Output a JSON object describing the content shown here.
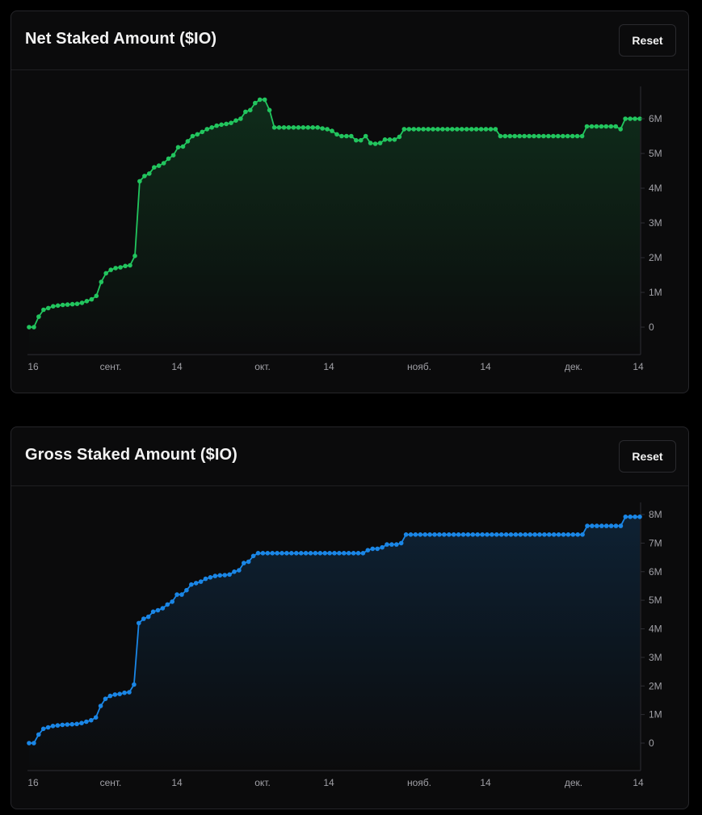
{
  "net": {
    "title": "Net Staked Amount ($IO)",
    "reset_label": "Reset"
  },
  "gross": {
    "title": "Gross Staked Amount ($IO)",
    "reset_label": "Reset"
  },
  "chart_data": [
    {
      "type": "area",
      "title": "Net Staked Amount ($IO)",
      "color": "#22c55e",
      "x_ticks": [
        "16",
        "сент.",
        "14",
        "окт.",
        "14",
        "нояб.",
        "14",
        "дек.",
        "14"
      ],
      "y_ticks": [
        "0",
        "1M",
        "2M",
        "3M",
        "4M",
        "5M",
        "6M"
      ],
      "ylim": [
        0,
        6000000
      ],
      "grid": false,
      "series": [
        {
          "values": [
            0,
            0,
            300000,
            500000,
            550000,
            600000,
            620000,
            640000,
            650000,
            660000,
            670000,
            700000,
            750000,
            800000,
            900000,
            1300000,
            1550000,
            1650000,
            1700000,
            1720000,
            1760000,
            1780000,
            2050000,
            4200000,
            4350000,
            4420000,
            4600000,
            4650000,
            4720000,
            4850000,
            4950000,
            5180000,
            5200000,
            5350000,
            5500000,
            5550000,
            5620000,
            5700000,
            5750000,
            5800000,
            5830000,
            5850000,
            5880000,
            5950000,
            6000000,
            6200000,
            6250000,
            6450000,
            6550000,
            6550000,
            6250000,
            5750000,
            5750000,
            5750000,
            5750000,
            5750000,
            5750000,
            5750000,
            5750000,
            5750000,
            5750000,
            5720000,
            5700000,
            5650000,
            5550000,
            5500000,
            5500000,
            5500000,
            5380000,
            5380000,
            5500000,
            5300000,
            5280000,
            5300000,
            5400000,
            5400000,
            5400000,
            5480000,
            5700000,
            5700000,
            5700000,
            5700000,
            5700000,
            5700000,
            5700000,
            5700000,
            5700000,
            5700000,
            5700000,
            5700000,
            5700000,
            5700000,
            5700000,
            5700000,
            5700000,
            5700000,
            5700000,
            5700000,
            5500000,
            5500000,
            5500000,
            5500000,
            5500000,
            5500000,
            5500000,
            5500000,
            5500000,
            5500000,
            5500000,
            5500000,
            5500000,
            5500000,
            5500000,
            5500000,
            5500000,
            5500000,
            5780000,
            5780000,
            5780000,
            5780000,
            5780000,
            5780000,
            5780000,
            5700000,
            6000000,
            6000000,
            6000000,
            6000000
          ]
        }
      ]
    },
    {
      "type": "area",
      "title": "Gross Staked Amount ($IO)",
      "color": "#1a86e6",
      "x_ticks": [
        "16",
        "сент.",
        "14",
        "окт.",
        "14",
        "нояб.",
        "14",
        "дек.",
        "14"
      ],
      "y_ticks": [
        "0",
        "1M",
        "2M",
        "3M",
        "4M",
        "5M",
        "6M",
        "7M",
        "8M"
      ],
      "ylim": [
        0,
        8000000
      ],
      "grid": false,
      "series": [
        {
          "values": [
            0,
            0,
            300000,
            500000,
            550000,
            600000,
            620000,
            640000,
            650000,
            660000,
            670000,
            700000,
            750000,
            800000,
            900000,
            1300000,
            1550000,
            1650000,
            1700000,
            1720000,
            1760000,
            1780000,
            2050000,
            4200000,
            4350000,
            4420000,
            4600000,
            4650000,
            4720000,
            4850000,
            4950000,
            5200000,
            5200000,
            5350000,
            5550000,
            5600000,
            5650000,
            5750000,
            5800000,
            5850000,
            5870000,
            5880000,
            5900000,
            6000000,
            6050000,
            6300000,
            6350000,
            6550000,
            6650000,
            6650000,
            6650000,
            6650000,
            6650000,
            6650000,
            6650000,
            6650000,
            6650000,
            6650000,
            6650000,
            6650000,
            6650000,
            6650000,
            6650000,
            6650000,
            6650000,
            6650000,
            6650000,
            6650000,
            6650000,
            6650000,
            6650000,
            6750000,
            6800000,
            6800000,
            6850000,
            6950000,
            6950000,
            6950000,
            7000000,
            7300000,
            7300000,
            7300000,
            7300000,
            7300000,
            7300000,
            7300000,
            7300000,
            7300000,
            7300000,
            7300000,
            7300000,
            7300000,
            7300000,
            7300000,
            7300000,
            7300000,
            7300000,
            7300000,
            7300000,
            7300000,
            7300000,
            7300000,
            7300000,
            7300000,
            7300000,
            7300000,
            7300000,
            7300000,
            7300000,
            7300000,
            7300000,
            7300000,
            7300000,
            7300000,
            7300000,
            7300000,
            7300000,
            7600000,
            7600000,
            7600000,
            7600000,
            7600000,
            7600000,
            7600000,
            7600000,
            7920000,
            7920000,
            7920000,
            7920000
          ]
        }
      ]
    }
  ]
}
